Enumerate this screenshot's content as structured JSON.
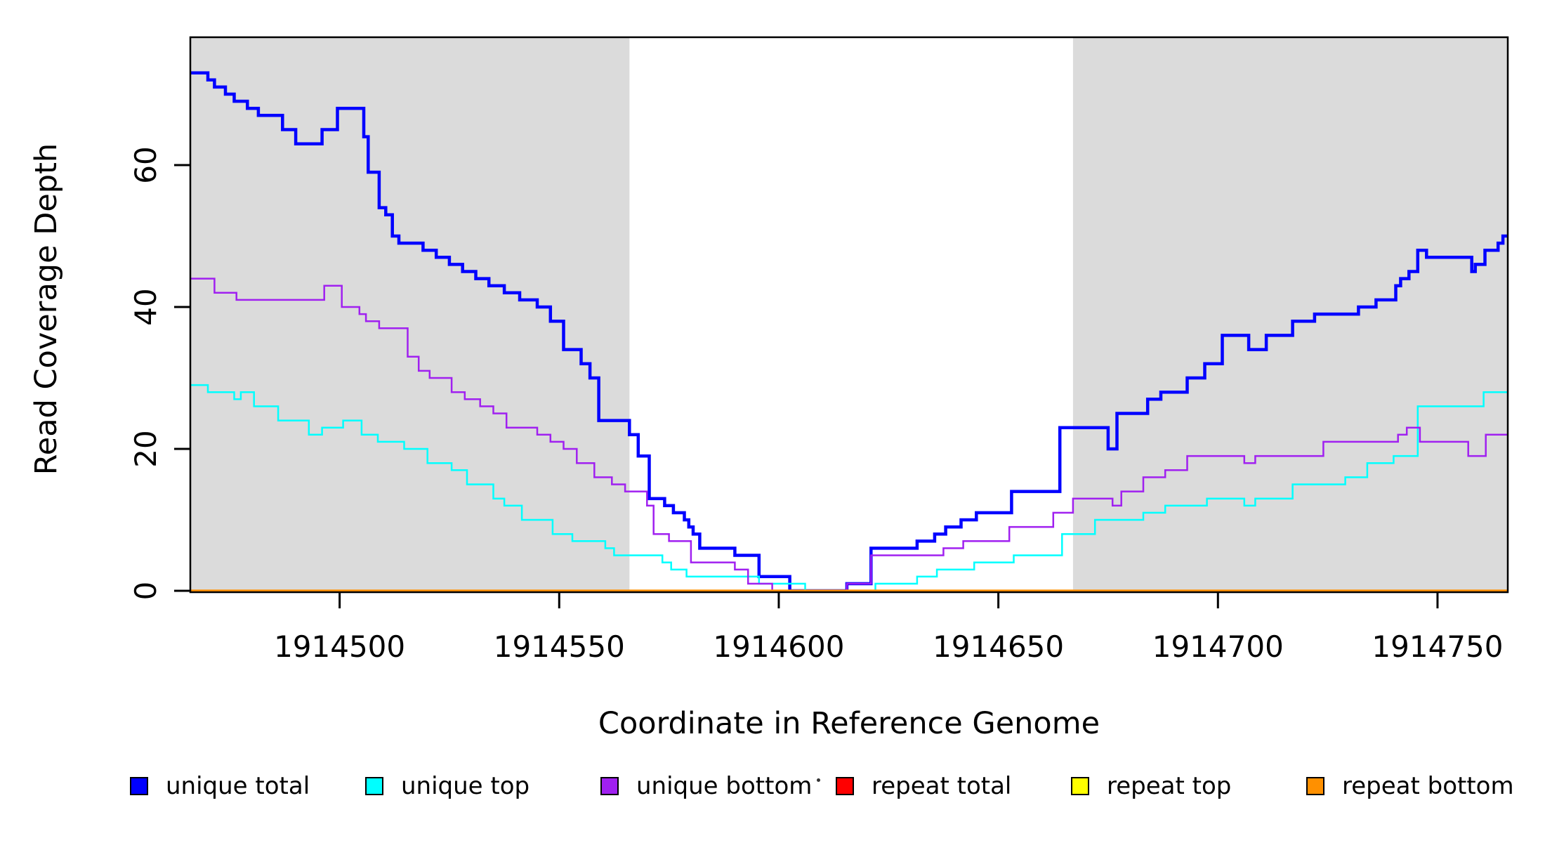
{
  "chart_data": {
    "type": "line",
    "step_style": true,
    "title": "",
    "xlabel": "Coordinate in Reference Genome",
    "ylabel": "Read Coverage Depth",
    "xlim": [
      1914466,
      1914766
    ],
    "ylim": [
      0,
      78
    ],
    "grid": false,
    "legend_position": "bottom",
    "background_color": "#ffffff",
    "shaded_region_color": "#dbdbdb",
    "shaded_regions": [
      {
        "x_start": 1914466,
        "x_end": 1914566
      },
      {
        "x_start": 1914667,
        "x_end": 1914766
      }
    ],
    "x_ticks": {
      "values": [
        1914500,
        1914550,
        1914600,
        1914650,
        1914700,
        1914750
      ],
      "labels": [
        "1914500",
        "1914550",
        "1914600",
        "1914650",
        "1914700",
        "1914750"
      ]
    },
    "y_ticks": {
      "values": [
        0,
        20,
        40,
        60
      ],
      "labels": [
        "0",
        "20",
        "40",
        "60"
      ]
    },
    "series": [
      {
        "name": "unique total",
        "color": "#0000ff",
        "line_width": 4.5,
        "steps": [
          [
            1914466,
            73
          ],
          [
            1914470,
            72
          ],
          [
            1914471.5,
            71
          ],
          [
            1914474,
            70
          ],
          [
            1914476,
            69
          ],
          [
            1914479,
            68
          ],
          [
            1914481.5,
            67
          ],
          [
            1914487,
            65
          ],
          [
            1914490,
            63
          ],
          [
            1914496,
            65
          ],
          [
            1914499.5,
            68
          ],
          [
            1914505.5,
            64
          ],
          [
            1914506.5,
            59
          ],
          [
            1914509,
            54
          ],
          [
            1914510.5,
            53
          ],
          [
            1914512,
            50
          ],
          [
            1914513.5,
            49
          ],
          [
            1914519,
            48
          ],
          [
            1914522,
            47
          ],
          [
            1914525,
            46
          ],
          [
            1914528,
            45
          ],
          [
            1914531,
            44
          ],
          [
            1914534,
            43
          ],
          [
            1914537.5,
            42
          ],
          [
            1914541,
            41
          ],
          [
            1914545,
            40
          ],
          [
            1914548,
            38
          ],
          [
            1914551,
            34
          ],
          [
            1914555,
            32
          ],
          [
            1914557,
            30
          ],
          [
            1914559,
            24
          ],
          [
            1914566,
            22
          ],
          [
            1914568,
            19
          ],
          [
            1914570.5,
            13
          ],
          [
            1914574,
            12
          ],
          [
            1914576,
            11
          ],
          [
            1914578.5,
            10
          ],
          [
            1914579.5,
            9
          ],
          [
            1914580.5,
            8
          ],
          [
            1914582,
            6
          ],
          [
            1914590,
            5
          ],
          [
            1914595.5,
            2
          ],
          [
            1914602.5,
            0
          ],
          [
            1914615.5,
            1
          ],
          [
            1914621,
            6
          ],
          [
            1914631.5,
            7
          ],
          [
            1914635.5,
            8
          ],
          [
            1914638,
            9
          ],
          [
            1914641.5,
            10
          ],
          [
            1914645,
            11
          ],
          [
            1914653,
            14
          ],
          [
            1914664,
            23
          ],
          [
            1914675,
            20
          ],
          [
            1914677,
            25
          ],
          [
            1914684,
            27
          ],
          [
            1914687,
            28
          ],
          [
            1914693,
            30
          ],
          [
            1914697,
            32
          ],
          [
            1914701,
            36
          ],
          [
            1914707,
            34
          ],
          [
            1914711,
            36
          ],
          [
            1914717,
            38
          ],
          [
            1914722,
            39
          ],
          [
            1914732,
            40
          ],
          [
            1914736,
            41
          ],
          [
            1914740.5,
            43
          ],
          [
            1914741.6,
            44
          ],
          [
            1914743.5,
            45
          ],
          [
            1914745.5,
            48
          ],
          [
            1914747.5,
            47
          ],
          [
            1914757.8,
            45
          ],
          [
            1914758.6,
            46
          ],
          [
            1914760.8,
            48
          ],
          [
            1914763.8,
            49
          ],
          [
            1914764.9,
            50
          ]
        ]
      },
      {
        "name": "unique top",
        "color": "#00ffff",
        "line_width": 2.5,
        "steps": [
          [
            1914466,
            29
          ],
          [
            1914470,
            28
          ],
          [
            1914476,
            27
          ],
          [
            1914477.5,
            28
          ],
          [
            1914480.5,
            26
          ],
          [
            1914486,
            24
          ],
          [
            1914493,
            22
          ],
          [
            1914496,
            23
          ],
          [
            1914500.8,
            24
          ],
          [
            1914505,
            22
          ],
          [
            1914508.7,
            21
          ],
          [
            1914514.7,
            20
          ],
          [
            1914520,
            18
          ],
          [
            1914525.5,
            17
          ],
          [
            1914529,
            15
          ],
          [
            1914535,
            13
          ],
          [
            1914537.5,
            12
          ],
          [
            1914541.5,
            10
          ],
          [
            1914548.5,
            8
          ],
          [
            1914553,
            7
          ],
          [
            1914560.5,
            6
          ],
          [
            1914562.5,
            5
          ],
          [
            1914573.5,
            4
          ],
          [
            1914575.5,
            3
          ],
          [
            1914579,
            2
          ],
          [
            1914595.5,
            1
          ],
          [
            1914606,
            0
          ],
          [
            1914622,
            1
          ],
          [
            1914631.5,
            2
          ],
          [
            1914636,
            3
          ],
          [
            1914644.5,
            4
          ],
          [
            1914653.5,
            5
          ],
          [
            1914664.5,
            8
          ],
          [
            1914672,
            10
          ],
          [
            1914683,
            11
          ],
          [
            1914688,
            12
          ],
          [
            1914697.5,
            13
          ],
          [
            1914706,
            12
          ],
          [
            1914708.5,
            13
          ],
          [
            1914717,
            15
          ],
          [
            1914729,
            16
          ],
          [
            1914734,
            18
          ],
          [
            1914740,
            19
          ],
          [
            1914745.5,
            26
          ],
          [
            1914760.5,
            28
          ]
        ]
      },
      {
        "name": "unique bottom",
        "color": "#a020f0",
        "line_width": 2.5,
        "steps": [
          [
            1914466,
            44
          ],
          [
            1914471.5,
            42
          ],
          [
            1914476.5,
            41
          ],
          [
            1914496.5,
            43
          ],
          [
            1914500.5,
            40
          ],
          [
            1914504.5,
            39
          ],
          [
            1914506,
            38
          ],
          [
            1914509,
            37
          ],
          [
            1914515.5,
            33
          ],
          [
            1914518,
            31
          ],
          [
            1914520.5,
            30
          ],
          [
            1914525.5,
            28
          ],
          [
            1914528.5,
            27
          ],
          [
            1914532,
            26
          ],
          [
            1914535,
            25
          ],
          [
            1914538,
            23
          ],
          [
            1914545,
            22
          ],
          [
            1914548,
            21
          ],
          [
            1914551,
            20
          ],
          [
            1914554,
            18
          ],
          [
            1914558,
            16
          ],
          [
            1914562,
            15
          ],
          [
            1914565,
            14
          ],
          [
            1914570,
            12
          ],
          [
            1914571.5,
            8
          ],
          [
            1914575,
            7
          ],
          [
            1914580,
            4
          ],
          [
            1914590,
            3
          ],
          [
            1914593,
            1
          ],
          [
            1914598.5,
            0
          ],
          [
            1914615.5,
            1
          ],
          [
            1914621,
            5
          ],
          [
            1914637.5,
            6
          ],
          [
            1914642,
            7
          ],
          [
            1914652.5,
            9
          ],
          [
            1914662.5,
            11
          ],
          [
            1914667,
            13
          ],
          [
            1914676,
            12
          ],
          [
            1914678,
            14
          ],
          [
            1914683,
            16
          ],
          [
            1914688,
            17
          ],
          [
            1914693,
            19
          ],
          [
            1914706,
            18
          ],
          [
            1914708.5,
            19
          ],
          [
            1914724,
            21
          ],
          [
            1914741,
            22
          ],
          [
            1914743,
            23
          ],
          [
            1914746,
            21
          ],
          [
            1914757,
            19
          ],
          [
            1914761,
            22
          ]
        ]
      },
      {
        "name": "repeat total",
        "color": "#ff0000",
        "line_width": 2.5,
        "steps": [
          [
            1914466,
            0
          ]
        ]
      },
      {
        "name": "repeat top",
        "color": "#ffff00",
        "line_width": 2.5,
        "steps": [
          [
            1914466,
            0
          ]
        ]
      },
      {
        "name": "repeat bottom",
        "color": "#ff9000",
        "line_width": 3.5,
        "steps": [
          [
            1914466,
            0
          ]
        ]
      }
    ]
  }
}
